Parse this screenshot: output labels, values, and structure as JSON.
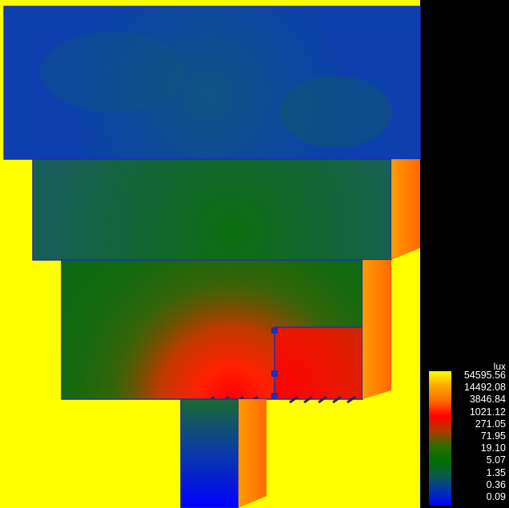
{
  "legend": {
    "unit": "lux",
    "values": [
      "54595.56",
      "14492.08",
      "3846.84",
      "1021.12",
      "271.05",
      "71.95",
      "19.10",
      "5.07",
      "1.35",
      "0.36",
      "0.09"
    ],
    "gradient": [
      "#ffff00",
      "#ffa500",
      "#ff6a00",
      "#ff0000",
      "#b03a00",
      "#2e6b00",
      "#007000",
      "#0a5a4a",
      "#0033aa",
      "#0000ff"
    ]
  },
  "colors": {
    "background": "#ffffff",
    "exterior_ground": "#ffff00",
    "sky_panel": "#000000",
    "wall_edge": "#ff8800",
    "boundary_line": "#1e2fb5"
  }
}
